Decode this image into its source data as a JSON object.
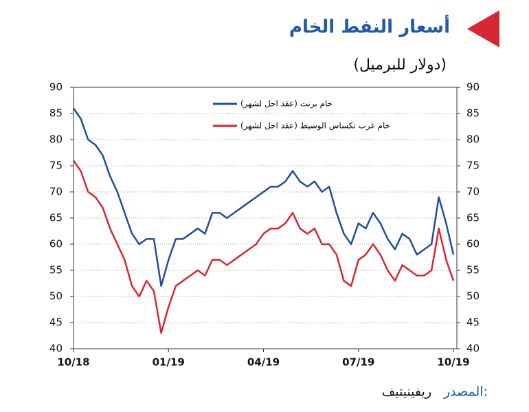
{
  "chart_data": {
    "type": "line",
    "title": "أسعار النفط الخام",
    "subtitle": "(دولار للبرميل)",
    "source_label": "المصدر:",
    "source_name": "ريفينيتيف",
    "categories": [
      "10/18",
      null,
      null,
      null,
      null,
      null,
      null,
      null,
      null,
      null,
      null,
      null,
      null,
      "01/19",
      null,
      null,
      null,
      null,
      null,
      null,
      null,
      null,
      null,
      null,
      null,
      null,
      "04/19",
      null,
      null,
      null,
      null,
      null,
      null,
      null,
      null,
      null,
      null,
      null,
      null,
      "07/19",
      null,
      null,
      null,
      null,
      null,
      null,
      null,
      null,
      null,
      null,
      null,
      null,
      "10/19"
    ],
    "series": [
      {
        "name": "خام برنت (عقد اجل لشهر)",
        "color": "#1f4e9c",
        "values": [
          86,
          84,
          80,
          79,
          77,
          73,
          70,
          66,
          62,
          60,
          61,
          61,
          52,
          57,
          61,
          61,
          62,
          63,
          62,
          66,
          66,
          65,
          66,
          67,
          68,
          69,
          70,
          71,
          71,
          72,
          74,
          72,
          71,
          72,
          70,
          71,
          66,
          62,
          60,
          64,
          63,
          66,
          64,
          61,
          59,
          62,
          61,
          58,
          59,
          60,
          69,
          64,
          58
        ]
      },
      {
        "name": "خام غرب تكساس الوسيط (عقد اجل لشهر)",
        "color": "#d7282f",
        "values": [
          76,
          74,
          70,
          69,
          67,
          63,
          60,
          57,
          52,
          50,
          53,
          51,
          43,
          48,
          52,
          53,
          54,
          55,
          54,
          57,
          57,
          56,
          57,
          58,
          59,
          60,
          62,
          63,
          63,
          64,
          66,
          63,
          62,
          63,
          60,
          60,
          58,
          53,
          52,
          57,
          58,
          60,
          58,
          55,
          53,
          56,
          55,
          54,
          54,
          55,
          63,
          57,
          53
        ]
      }
    ],
    "ylim": [
      40,
      90
    ],
    "yticks": [
      40,
      45,
      50,
      55,
      60,
      65,
      70,
      75,
      80,
      85,
      90
    ],
    "y2lim": [
      40,
      90
    ],
    "y2ticks": [
      40,
      45,
      50,
      55,
      60,
      65,
      70,
      75,
      80,
      85,
      90
    ],
    "grid": true
  }
}
